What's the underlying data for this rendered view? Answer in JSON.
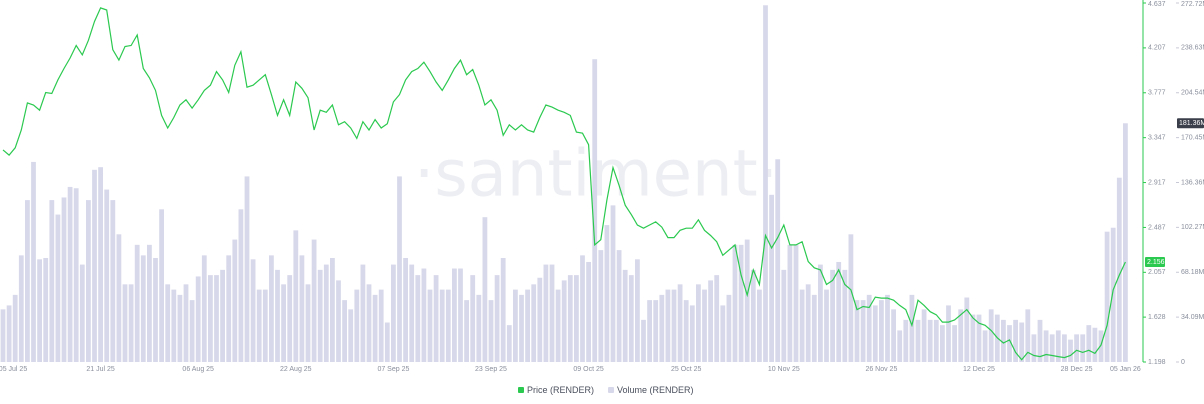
{
  "chart_data": {
    "type": "combo",
    "watermark": "·santiment·",
    "categories": [
      "05 Jul 25",
      null,
      null,
      null,
      null,
      null,
      null,
      null,
      null,
      null,
      null,
      null,
      null,
      null,
      null,
      null,
      "21 Jul 25",
      null,
      null,
      null,
      null,
      null,
      null,
      null,
      null,
      null,
      null,
      null,
      null,
      null,
      null,
      null,
      "06 Aug 25",
      null,
      null,
      null,
      null,
      null,
      null,
      null,
      null,
      null,
      null,
      null,
      null,
      null,
      null,
      null,
      "22 Aug 25",
      null,
      null,
      null,
      null,
      null,
      null,
      null,
      null,
      null,
      null,
      null,
      null,
      null,
      null,
      null,
      "07 Sep 25",
      null,
      null,
      null,
      null,
      null,
      null,
      null,
      null,
      null,
      null,
      null,
      null,
      null,
      null,
      null,
      "23 Sep 25",
      null,
      null,
      null,
      null,
      null,
      null,
      null,
      null,
      null,
      null,
      null,
      null,
      null,
      null,
      null,
      "09 Oct 25",
      null,
      null,
      null,
      null,
      null,
      null,
      null,
      null,
      null,
      null,
      null,
      null,
      null,
      null,
      null,
      "25 Oct 25",
      null,
      null,
      null,
      null,
      null,
      null,
      null,
      null,
      null,
      null,
      null,
      null,
      null,
      null,
      null,
      "10 Nov 25",
      null,
      null,
      null,
      null,
      null,
      null,
      null,
      null,
      null,
      null,
      null,
      null,
      null,
      null,
      null,
      "26 Nov 25",
      null,
      null,
      null,
      null,
      null,
      null,
      null,
      null,
      null,
      null,
      null,
      null,
      null,
      null,
      null,
      "12 Dec 25",
      null,
      null,
      null,
      null,
      null,
      null,
      null,
      null,
      null,
      null,
      null,
      null,
      null,
      null,
      null,
      "28 Dec 25",
      null,
      null,
      null,
      null,
      null,
      null,
      null,
      "05 Jan 26"
    ],
    "series": [
      {
        "name": "Volume (RENDER)",
        "type": "bar",
        "axis": "y2",
        "color": "#d7d8ea",
        "values": [
          40,
          43,
          51,
          81,
          123,
          152,
          78,
          79,
          123,
          112,
          125,
          133,
          132,
          74,
          123,
          146,
          148,
          131,
          123,
          97,
          59,
          59,
          89,
          81,
          89,
          79,
          116,
          59,
          55,
          51,
          59,
          47,
          65,
          81,
          66,
          66,
          70,
          81,
          93,
          116,
          141,
          78,
          55,
          55,
          81,
          70,
          59,
          66,
          100,
          81,
          59,
          93,
          70,
          74,
          79,
          62,
          47,
          40,
          55,
          74,
          59,
          51,
          55,
          30,
          74,
          141,
          79,
          74,
          66,
          71,
          55,
          66,
          55,
          55,
          71,
          71,
          47,
          66,
          51,
          110,
          47,
          66,
          79,
          28,
          55,
          51,
          55,
          59,
          64,
          74,
          74,
          55,
          62,
          66,
          66,
          81,
          76,
          230,
          85,
          104,
          119,
          85,
          70,
          66,
          78,
          32,
          47,
          47,
          51,
          55,
          55,
          59,
          47,
          43,
          59,
          55,
          62,
          66,
          43,
          51,
          89,
          89,
          93,
          70,
          55,
          271,
          127,
          154,
          70,
          89,
          89,
          55,
          59,
          51,
          74,
          55,
          70,
          76,
          70,
          97,
          47,
          47,
          51,
          43,
          47,
          51,
          40,
          24,
          32,
          51,
          32,
          40,
          32,
          32,
          28,
          43,
          28,
          40,
          49,
          36,
          36,
          24,
          40,
          36,
          32,
          28,
          32,
          30,
          40,
          21,
          32,
          24,
          21,
          24,
          21,
          17,
          21,
          21,
          28,
          26,
          24,
          99,
          102,
          140,
          181.36
        ]
      },
      {
        "name": "Price (RENDER)",
        "type": "line",
        "axis": "y",
        "color": "#2bc94f",
        "values": [
          3.23,
          3.18,
          3.25,
          3.42,
          3.68,
          3.66,
          3.61,
          3.78,
          3.77,
          3.9,
          4.01,
          4.11,
          4.23,
          4.14,
          4.28,
          4.46,
          4.59,
          4.57,
          4.19,
          4.09,
          4.22,
          4.23,
          4.33,
          4.01,
          3.92,
          3.8,
          3.56,
          3.44,
          3.54,
          3.66,
          3.71,
          3.63,
          3.71,
          3.8,
          3.85,
          3.98,
          3.9,
          3.78,
          4.04,
          4.17,
          3.83,
          3.85,
          3.9,
          3.95,
          3.76,
          3.56,
          3.71,
          3.56,
          3.88,
          3.82,
          3.73,
          3.42,
          3.61,
          3.59,
          3.66,
          3.47,
          3.5,
          3.44,
          3.34,
          3.5,
          3.42,
          3.52,
          3.44,
          3.48,
          3.69,
          3.76,
          3.9,
          3.98,
          4.01,
          4.07,
          3.98,
          3.88,
          3.8,
          3.9,
          4.01,
          4.09,
          3.95,
          4.0,
          3.85,
          3.66,
          3.71,
          3.61,
          3.37,
          3.47,
          3.42,
          3.47,
          3.42,
          3.4,
          3.54,
          3.66,
          3.64,
          3.61,
          3.59,
          3.56,
          3.4,
          3.39,
          3.28,
          2.32,
          2.37,
          2.75,
          3.06,
          2.89,
          2.7,
          2.61,
          2.51,
          2.48,
          2.51,
          2.54,
          2.49,
          2.39,
          2.39,
          2.46,
          2.48,
          2.48,
          2.56,
          2.46,
          2.41,
          2.35,
          2.22,
          2.27,
          2.32,
          2.03,
          1.84,
          2.08,
          1.94,
          2.41,
          2.29,
          2.39,
          2.51,
          2.32,
          2.32,
          2.35,
          2.16,
          2.1,
          2.08,
          1.94,
          1.98,
          2.08,
          1.94,
          1.89,
          1.7,
          1.73,
          1.72,
          1.82,
          1.81,
          1.81,
          1.79,
          1.74,
          1.7,
          1.55,
          1.79,
          1.74,
          1.68,
          1.65,
          1.58,
          1.58,
          1.6,
          1.65,
          1.7,
          1.62,
          1.57,
          1.55,
          1.5,
          1.43,
          1.38,
          1.41,
          1.29,
          1.22,
          1.29,
          1.26,
          1.25,
          1.27,
          1.26,
          1.25,
          1.24,
          1.26,
          1.31,
          1.29,
          1.31,
          1.28,
          1.36,
          1.55,
          1.89,
          2.03,
          2.156
        ]
      }
    ],
    "ylim": [
      1.198,
      4.637
    ],
    "yticks": [
      1.198,
      1.628,
      2.057,
      2.487,
      2.917,
      3.347,
      3.777,
      4.207,
      4.637
    ],
    "y2lim": [
      0,
      272.72
    ],
    "y2ticks": [
      0,
      {
        "value": 34.09,
        "label": "34.09M"
      },
      {
        "value": 68.18,
        "label": "68.18M"
      },
      {
        "value": 102.27,
        "label": "102.27M"
      },
      {
        "value": 136.36,
        "label": "136.36M"
      },
      {
        "value": 170.45,
        "label": "170.45M"
      },
      {
        "value": 204.54,
        "label": "204.54M"
      },
      {
        "value": 238.63,
        "label": "238.63M"
      },
      {
        "value": 272.72,
        "label": "272.72M"
      }
    ],
    "annotations": [
      {
        "text": "181.36M",
        "value": 181.36,
        "axis": "y2",
        "color": "#3a3d4a"
      },
      {
        "text": "2.156",
        "value": 2.156,
        "axis": "y",
        "color": "#2bc94f"
      }
    ],
    "grid": false,
    "legend": "bottom"
  }
}
